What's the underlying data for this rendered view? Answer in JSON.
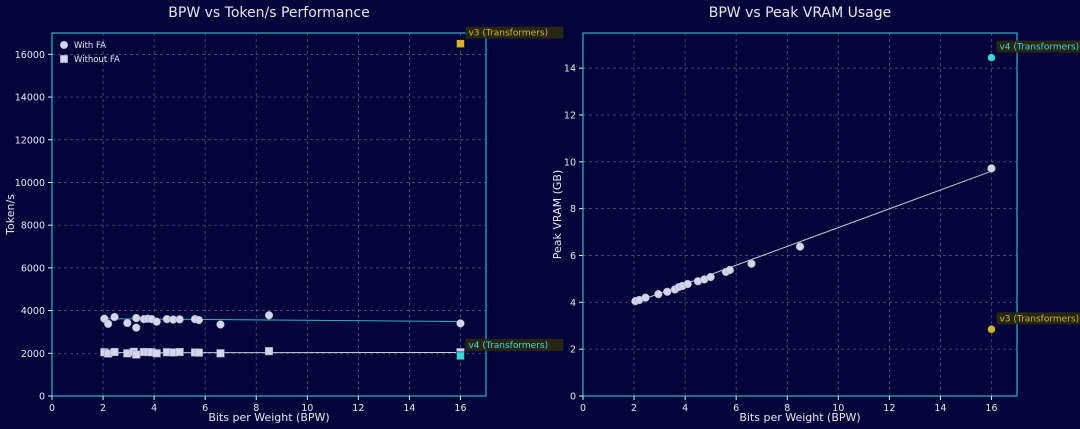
{
  "colors": {
    "background": "#03053a",
    "axes_frame": "#2fb3c4",
    "grid": "#6b6f9a",
    "text": "#e6e6f0",
    "with_fa": "#d4d6ec",
    "without_fa": "#d4d6ec",
    "trend_with": "#2fb3c4",
    "trend_without": "#c8c8d8",
    "v3": "#d6b230",
    "v4": "#3ad6de",
    "annotation_bg": "#2b2a10"
  },
  "chart_data": [
    {
      "type": "scatter",
      "title": "BPW vs Token/s Performance",
      "xlabel": "Bits per Weight (BPW)",
      "ylabel": "Token/s",
      "xlim": [
        0,
        17
      ],
      "ylim": [
        0,
        17000
      ],
      "xticks": [
        "0",
        "2",
        "4",
        "6",
        "8",
        "10",
        "12",
        "14",
        "16"
      ],
      "yticks": [
        "0",
        "2000",
        "4000",
        "6000",
        "8000",
        "10000",
        "12000",
        "14000",
        "16000"
      ],
      "grid": true,
      "legend_position": "top-left",
      "series": [
        {
          "name": "With FA",
          "marker": "circle",
          "points": [
            [
              2.05,
              3620
            ],
            [
              2.2,
              3380
            ],
            [
              2.45,
              3700
            ],
            [
              2.95,
              3420
            ],
            [
              3.3,
              3650
            ],
            [
              3.3,
              3200
            ],
            [
              3.6,
              3600
            ],
            [
              3.75,
              3620
            ],
            [
              3.9,
              3600
            ],
            [
              4.1,
              3480
            ],
            [
              4.5,
              3600
            ],
            [
              4.75,
              3580
            ],
            [
              5.0,
              3590
            ],
            [
              5.6,
              3600
            ],
            [
              5.75,
              3560
            ],
            [
              6.6,
              3350
            ],
            [
              8.5,
              3780
            ],
            [
              16.0,
              3400
            ]
          ]
        },
        {
          "name": "Without FA",
          "marker": "square",
          "points": [
            [
              2.05,
              2050
            ],
            [
              2.2,
              1990
            ],
            [
              2.45,
              2060
            ],
            [
              2.95,
              2000
            ],
            [
              3.2,
              2070
            ],
            [
              3.3,
              1940
            ],
            [
              3.6,
              2060
            ],
            [
              3.75,
              2060
            ],
            [
              3.9,
              2050
            ],
            [
              4.1,
              2000
            ],
            [
              4.5,
              2050
            ],
            [
              4.75,
              2040
            ],
            [
              5.0,
              2060
            ],
            [
              5.6,
              2040
            ],
            [
              5.75,
              2030
            ],
            [
              6.6,
              2000
            ],
            [
              8.5,
              2100
            ],
            [
              16.0,
              2050
            ]
          ]
        }
      ],
      "trend_lines": [
        {
          "series": "With FA",
          "from": [
            2.05,
            3620
          ],
          "to": [
            16.0,
            3490
          ]
        },
        {
          "series": "Without FA",
          "from": [
            2.05,
            2030
          ],
          "to": [
            16.0,
            2040
          ]
        }
      ],
      "annotations": [
        {
          "label": "v3 (Transformers)",
          "point": [
            16.0,
            16500
          ],
          "marker": "square",
          "color": "v3"
        },
        {
          "label": "v4 (Transformers)",
          "point": [
            16.0,
            1880
          ],
          "marker": "square",
          "color": "v4"
        }
      ]
    },
    {
      "type": "scatter",
      "title": "BPW vs Peak VRAM Usage",
      "xlabel": "Bits per Weight (BPW)",
      "ylabel": "Peak VRAM (GB)",
      "xlim": [
        0,
        17
      ],
      "ylim": [
        0,
        15.5
      ],
      "xticks": [
        "0",
        "2",
        "4",
        "6",
        "8",
        "10",
        "12",
        "14",
        "16"
      ],
      "yticks": [
        "0",
        "2",
        "4",
        "6",
        "8",
        "10",
        "12",
        "14"
      ],
      "grid": true,
      "series": [
        {
          "marker": "circle",
          "points": [
            [
              2.05,
              4.05
            ],
            [
              2.2,
              4.1
            ],
            [
              2.45,
              4.2
            ],
            [
              2.95,
              4.35
            ],
            [
              3.3,
              4.45
            ],
            [
              3.6,
              4.55
            ],
            [
              3.75,
              4.65
            ],
            [
              3.9,
              4.7
            ],
            [
              4.1,
              4.78
            ],
            [
              4.5,
              4.9
            ],
            [
              4.75,
              4.98
            ],
            [
              5.0,
              5.08
            ],
            [
              5.6,
              5.3
            ],
            [
              5.75,
              5.38
            ],
            [
              6.6,
              5.65
            ],
            [
              8.5,
              6.38
            ],
            [
              16.0,
              9.72
            ]
          ]
        }
      ],
      "trend_lines": [
        {
          "from": [
            2.05,
            4.0
          ],
          "to": [
            16.0,
            9.6
          ]
        }
      ],
      "annotations": [
        {
          "label": "v4 (Transformers)",
          "point": [
            16.0,
            14.45
          ],
          "marker": "circle",
          "color": "v4"
        },
        {
          "label": "v3 (Transformers)",
          "point": [
            16.0,
            2.85
          ],
          "marker": "circle",
          "color": "v3"
        }
      ]
    }
  ]
}
